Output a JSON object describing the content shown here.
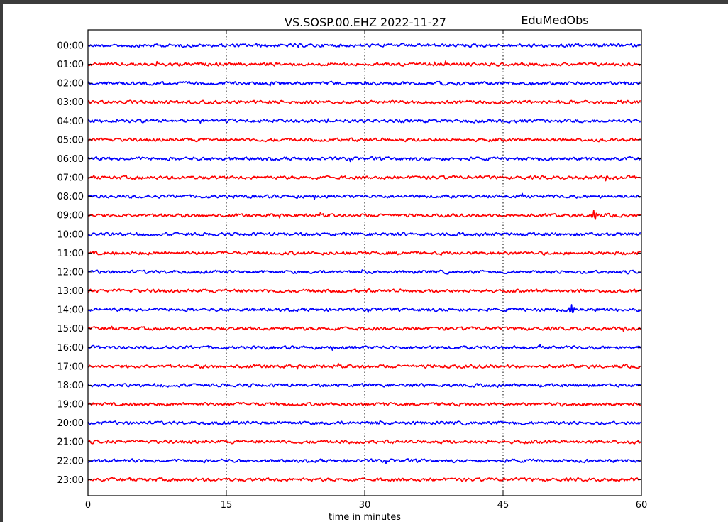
{
  "chart_data": {
    "type": "line",
    "title": "VS.SOSP.00.EHZ 2022-11-27",
    "subtitle": "EduMedObs",
    "xlabel": "time in minutes",
    "ylabel": "",
    "xlim": [
      0,
      60
    ],
    "xticks": [
      "0",
      "15",
      "30",
      "45",
      "60"
    ],
    "x_tick_values": [
      0,
      15,
      30,
      45,
      60
    ],
    "grid": "vertical dotted",
    "row_labels": [
      "00:00",
      "01:00",
      "02:00",
      "03:00",
      "04:00",
      "05:00",
      "06:00",
      "07:00",
      "08:00",
      "09:00",
      "10:00",
      "11:00",
      "12:00",
      "13:00",
      "14:00",
      "15:00",
      "16:00",
      "17:00",
      "18:00",
      "19:00",
      "20:00",
      "21:00",
      "22:00",
      "23:00"
    ],
    "colors": [
      "#0000ff",
      "#ff0000"
    ],
    "events": [
      {
        "row": "09:00",
        "minute": 54.9
      },
      {
        "row": "14:00",
        "minute": 52.5
      }
    ]
  }
}
